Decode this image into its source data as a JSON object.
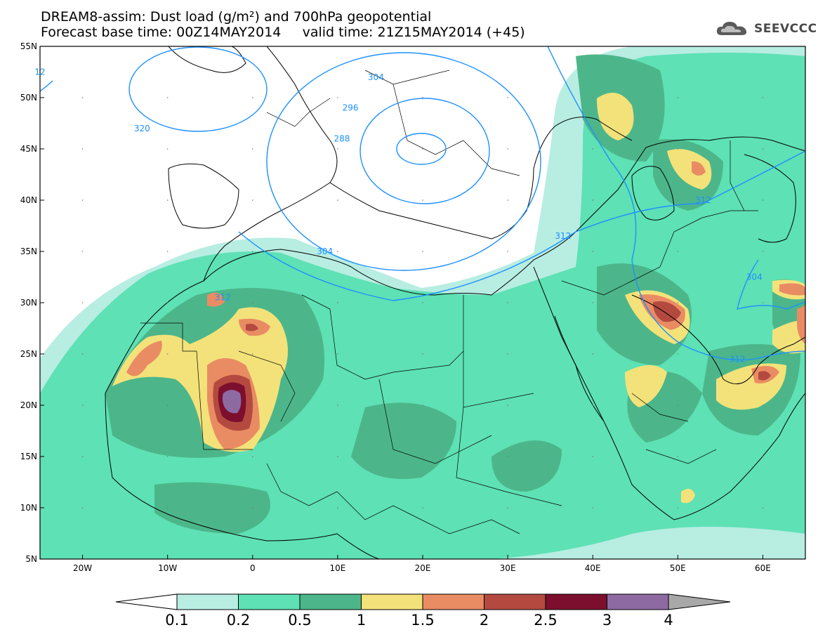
{
  "header": {
    "line1": "DREAM8-assim: Dust load (g/m²) and 700hPa geopotential",
    "line2": "Forecast base time: 00Z14MAY2014     valid time: 21Z15MAY2014 (+45)"
  },
  "logo": {
    "text": "SEEVCCC",
    "icon": "cloud-icon"
  },
  "map": {
    "lat_range": [
      5,
      55
    ],
    "lon_range": [
      -25,
      65
    ],
    "lat_ticks": [
      "55N",
      "50N",
      "45N",
      "40N",
      "35N",
      "30N",
      "25N",
      "20N",
      "15N",
      "10N",
      "5N"
    ],
    "lon_ticks": [
      "20W",
      "10W",
      "0",
      "10E",
      "20E",
      "30E",
      "40E",
      "50E",
      "60E"
    ],
    "contours": [
      {
        "label": "320",
        "lon": -13,
        "lat": 47
      },
      {
        "label": "12",
        "lon": -25,
        "lat": 52.5
      },
      {
        "label": "304",
        "lon": 14.5,
        "lat": 52
      },
      {
        "label": "296",
        "lon": 11.5,
        "lat": 49
      },
      {
        "label": "288",
        "lon": 10.5,
        "lat": 46
      },
      {
        "label": "304",
        "lon": 8.5,
        "lat": 35
      },
      {
        "label": "312",
        "lon": -3.5,
        "lat": 30.5
      },
      {
        "label": "312",
        "lon": 36.5,
        "lat": 36.5
      },
      {
        "label": "312",
        "lon": 53,
        "lat": 40
      },
      {
        "label": "304",
        "lon": 59,
        "lat": 32.5
      },
      {
        "label": "312",
        "lon": 57,
        "lat": 24.5
      }
    ],
    "contour_color": "#1e90ff"
  },
  "colorbar": {
    "labels": [
      "0.1",
      "0.2",
      "0.5",
      "1",
      "1.5",
      "2",
      "2.5",
      "3",
      "4"
    ],
    "colors": [
      "#b8ede2",
      "#5ee1b4",
      "#4cb68a",
      "#f3e27a",
      "#e98c63",
      "#b44a3f",
      "#7c0f2e",
      "#8e6aa3",
      "#a8a8a8"
    ]
  }
}
